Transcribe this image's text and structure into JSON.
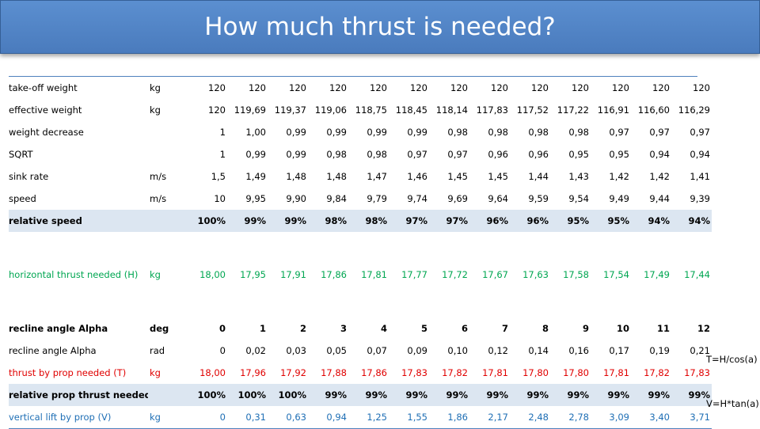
{
  "title": "How much thrust is needed?",
  "rows": [
    {
      "label": "take-off weight",
      "unit": "kg",
      "values": [
        "120",
        "120",
        "120",
        "120",
        "120",
        "120",
        "120",
        "120",
        "120",
        "120",
        "120",
        "120",
        "120"
      ]
    },
    {
      "label": "effective weight",
      "unit": "kg",
      "values": [
        "120",
        "119,69",
        "119,37",
        "119,06",
        "118,75",
        "118,45",
        "118,14",
        "117,83",
        "117,52",
        "117,22",
        "116,91",
        "116,60",
        "116,29"
      ]
    },
    {
      "label": "weight decrease",
      "unit": "",
      "values": [
        "1",
        "1,00",
        "0,99",
        "0,99",
        "0,99",
        "0,99",
        "0,98",
        "0,98",
        "0,98",
        "0,98",
        "0,97",
        "0,97",
        "0,97"
      ]
    },
    {
      "label": "SQRT",
      "unit": "",
      "values": [
        "1",
        "0,99",
        "0,99",
        "0,98",
        "0,98",
        "0,97",
        "0,97",
        "0,96",
        "0,96",
        "0,95",
        "0,95",
        "0,94",
        "0,94"
      ]
    },
    {
      "label": "sink rate",
      "unit": "m/s",
      "values": [
        "1,5",
        "1,49",
        "1,48",
        "1,48",
        "1,47",
        "1,46",
        "1,45",
        "1,45",
        "1,44",
        "1,43",
        "1,42",
        "1,42",
        "1,41"
      ]
    },
    {
      "label": "speed",
      "unit": "m/s",
      "values": [
        "10",
        "9,95",
        "9,90",
        "9,84",
        "9,79",
        "9,74",
        "9,69",
        "9,64",
        "9,59",
        "9,54",
        "9,49",
        "9,44",
        "9,39"
      ]
    },
    {
      "label": "relative speed",
      "unit": "",
      "values": [
        "100%",
        "99%",
        "99%",
        "98%",
        "98%",
        "97%",
        "97%",
        "96%",
        "96%",
        "95%",
        "95%",
        "94%",
        "94%"
      ]
    },
    {
      "label": "horizontal thrust needed (H)",
      "unit": "kg",
      "values": [
        "18,00",
        "17,95",
        "17,91",
        "17,86",
        "17,81",
        "17,77",
        "17,72",
        "17,67",
        "17,63",
        "17,58",
        "17,54",
        "17,49",
        "17,44"
      ]
    },
    {
      "label": "recline angle Alpha",
      "unit": "deg",
      "values": [
        "0",
        "1",
        "2",
        "3",
        "4",
        "5",
        "6",
        "7",
        "8",
        "9",
        "10",
        "11",
        "12"
      ]
    },
    {
      "label": "recline angle Alpha",
      "unit": "rad",
      "values": [
        "0",
        "0,02",
        "0,03",
        "0,05",
        "0,07",
        "0,09",
        "0,10",
        "0,12",
        "0,14",
        "0,16",
        "0,17",
        "0,19",
        "0,21"
      ]
    },
    {
      "label": "thrust by prop needed (T)",
      "unit": "kg",
      "values": [
        "18,00",
        "17,96",
        "17,92",
        "17,88",
        "17,86",
        "17,83",
        "17,82",
        "17,81",
        "17,80",
        "17,80",
        "17,81",
        "17,82",
        "17,83"
      ]
    },
    {
      "label": "relative prop thrust needed",
      "unit": "",
      "values": [
        "100%",
        "100%",
        "100%",
        "99%",
        "99%",
        "99%",
        "99%",
        "99%",
        "99%",
        "99%",
        "99%",
        "99%",
        "99%"
      ]
    },
    {
      "label": "vertical lift by prop (V)",
      "unit": "kg",
      "values": [
        "0",
        "0,31",
        "0,63",
        "0,94",
        "1,25",
        "1,55",
        "1,86",
        "2,17",
        "2,48",
        "2,78",
        "3,09",
        "3,40",
        "3,71"
      ]
    }
  ],
  "formulas": {
    "thrust": "T=H/cos(a)",
    "lift": "V=H*tan(a)"
  },
  "colors": {
    "title_bar": "#4f81bd",
    "shaded_row": "#dce6f1",
    "green": "#00a651",
    "red": "#e00000",
    "blue": "#1f6fb5"
  }
}
